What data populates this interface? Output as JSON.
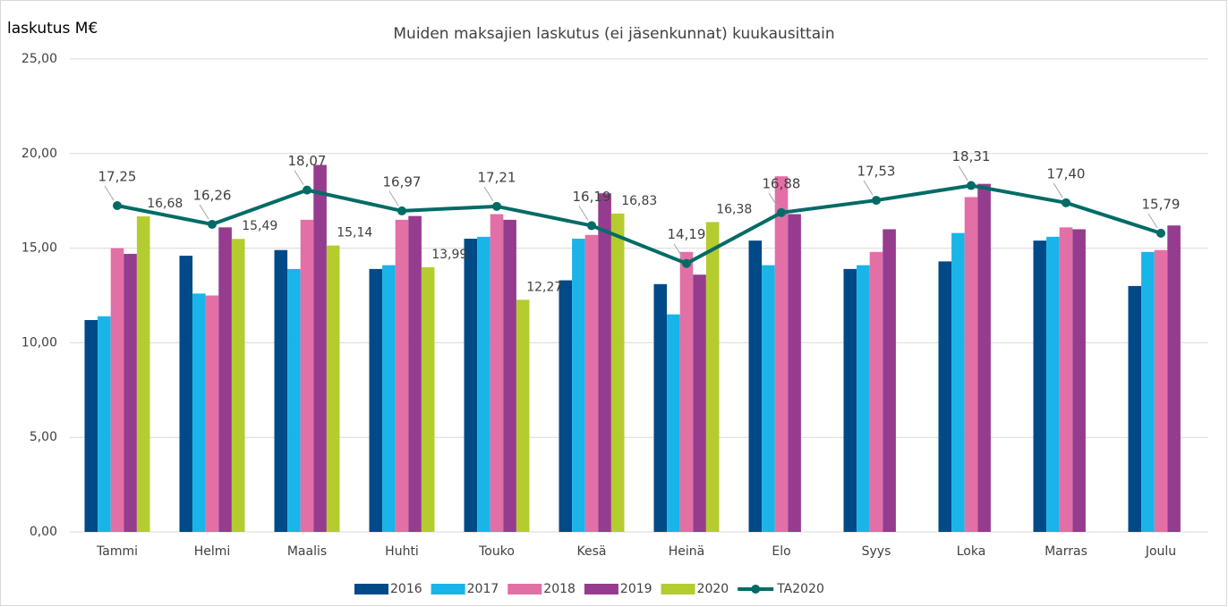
{
  "chart_data": {
    "type": "bar_line",
    "title": "Muiden maksajien laskutus (ei jäsenkunnat) kuukausittain",
    "y_label": "laskutus M€",
    "categories": [
      "Tammi",
      "Helmi",
      "Maalis",
      "Huhti",
      "Touko",
      "Kesä",
      "Heinä",
      "Elo",
      "Syys",
      "Loka",
      "Marras",
      "Joulu"
    ],
    "series": [
      {
        "name": "2016",
        "type": "bar",
        "color": "#004a87",
        "values": [
          11.2,
          14.6,
          14.9,
          13.9,
          15.5,
          13.3,
          13.1,
          15.4,
          13.9,
          14.3,
          15.4,
          13.0
        ]
      },
      {
        "name": "2017",
        "type": "bar",
        "color": "#19b4e8",
        "values": [
          11.4,
          12.6,
          13.9,
          14.1,
          15.6,
          15.5,
          11.5,
          14.1,
          14.1,
          15.8,
          15.6,
          14.8
        ]
      },
      {
        "name": "2018",
        "type": "bar",
        "color": "#e36fa7",
        "values": [
          15.0,
          12.5,
          16.5,
          16.5,
          16.8,
          15.7,
          14.8,
          18.8,
          14.8,
          17.7,
          16.1,
          14.9
        ]
      },
      {
        "name": "2019",
        "type": "bar",
        "color": "#953c8f",
        "values": [
          14.7,
          16.1,
          19.4,
          16.7,
          16.5,
          17.9,
          13.6,
          16.8,
          16.0,
          18.4,
          16.0,
          16.2
        ]
      },
      {
        "name": "2020",
        "type": "bar",
        "color": "#b5cc2f",
        "values": [
          16.68,
          15.49,
          15.14,
          13.99,
          12.27,
          16.83,
          16.38,
          null,
          null,
          null,
          null,
          null
        ],
        "value_labels": [
          "16,68",
          "15,49",
          "15,14",
          "13,99",
          "12,27",
          "16,83",
          "16,38",
          null,
          null,
          null,
          null,
          null
        ]
      },
      {
        "name": "TA2020",
        "type": "line",
        "color": "#006b66",
        "values": [
          17.25,
          16.26,
          18.07,
          16.97,
          17.21,
          16.19,
          14.19,
          16.88,
          17.53,
          18.31,
          17.4,
          15.79
        ],
        "value_labels": [
          "17,25",
          "16,26",
          "18,07",
          "16,97",
          "17,21",
          "16,19",
          "14,19",
          "16,88",
          "17,53",
          "18,31",
          "17,40",
          "15,79"
        ]
      }
    ],
    "ylim": [
      0,
      25
    ],
    "yticks": [
      {
        "value": 0,
        "label": "0,00"
      },
      {
        "value": 5,
        "label": "5,00"
      },
      {
        "value": 10,
        "label": "10,00"
      },
      {
        "value": 15,
        "label": "15,00"
      },
      {
        "value": 20,
        "label": "20,00"
      },
      {
        "value": 25,
        "label": "25,00"
      }
    ],
    "grid": true,
    "legend": "bottom"
  }
}
